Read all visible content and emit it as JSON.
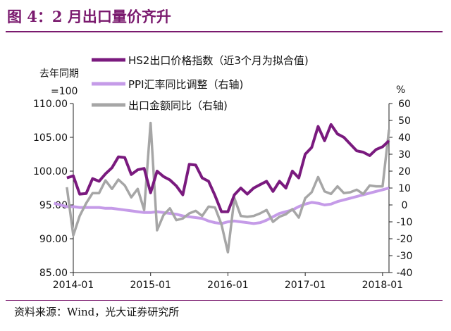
{
  "figure": {
    "title": "图 4：2 月出口量价齐升",
    "source": "资料来源：Wind，光大证券研究所"
  },
  "colors": {
    "hs2": "#7a1a7e",
    "ppi": "#c59be8",
    "export": "#a6a6a6",
    "title": "#7a1a6e"
  },
  "chart_data": {
    "type": "line",
    "left_axis_label": "去年同期",
    "left_axis_label2": "=100",
    "right_axis_unit": "%",
    "left_ylim": [
      85,
      110
    ],
    "left_ticks": [
      "85.00",
      "90.00",
      "95.00",
      "100.00",
      "105.00",
      "110.00"
    ],
    "right_ylim": [
      -40,
      60
    ],
    "right_ticks": [
      "-40",
      "-30",
      "-20",
      "-10",
      "0",
      "10",
      "20",
      "30",
      "40",
      "50",
      "60"
    ],
    "x_tick_labels": [
      "2014-01",
      "2015-01",
      "2016-01",
      "2017-01",
      "2018-01"
    ],
    "x_start": "2014-01",
    "x_end": "2018-02",
    "legend_position": "top",
    "series": [
      {
        "name": "HS2出口价格指数（近3个月为拟合值)",
        "axis": "left",
        "values": [
          99.0,
          99.3,
          96.6,
          96.7,
          98.9,
          98.5,
          99.6,
          100.5,
          102.1,
          102.0,
          99.5,
          100.2,
          100.4,
          96.8,
          100.0,
          99.2,
          98.7,
          97.8,
          96.5,
          101.0,
          100.9,
          99.0,
          98.5,
          96.4,
          94.0,
          94.0,
          96.5,
          97.5,
          96.6,
          97.5,
          98.0,
          98.5,
          97.0,
          98.5,
          97.5,
          100.0,
          99.0,
          102.5,
          103.5,
          106.6,
          104.5,
          106.9,
          105.5,
          105.0,
          104.0,
          103.0,
          102.8,
          102.3,
          103.2,
          103.6,
          104.5
        ]
      },
      {
        "name": "PPI汇率同比调整（右轴)",
        "axis": "right",
        "values": [
          1.0,
          0.0,
          -1.0,
          -1.0,
          -1.5,
          -1.5,
          -1.5,
          -1.5,
          -2.0,
          -2.0,
          -2.5,
          -3.0,
          -3.5,
          -4.0,
          -4.5,
          -4.5,
          -4.0,
          -4.5,
          -5.0,
          -5.5,
          -6.5,
          -7.0,
          -7.5,
          -8.0,
          -9.5,
          -10.5,
          -11.0,
          -10.0,
          -9.5,
          -10.0,
          -10.5,
          -11.0,
          -10.5,
          -9.0,
          -7.0,
          -5.0,
          -4.0,
          -3.0,
          -1.0,
          0.5,
          1.5,
          1.0,
          0.0,
          0.5,
          2.0,
          3.0,
          4.0,
          5.0,
          6.0,
          7.0,
          8.0,
          9.0,
          10.0
        ]
      },
      {
        "name": "出口金额同比（右轴)",
        "axis": "right",
        "values": [
          10.5,
          -18.0,
          -6.5,
          1.0,
          7.0,
          7.0,
          14.5,
          9.5,
          15.0,
          11.5,
          4.5,
          9.5,
          -3.0,
          48.5,
          -15.0,
          -6.0,
          -2.0,
          -9.0,
          -8.0,
          -5.0,
          -3.5,
          -6.5,
          -1.0,
          -1.5,
          -11.5,
          -28.0,
          4.0,
          -6.5,
          -7.0,
          -6.5,
          -5.0,
          -3.0,
          -10.0,
          -7.0,
          -5.5,
          -2.5,
          -7.5,
          4.0,
          7.5,
          16.5,
          8.0,
          6.5,
          11.0,
          7.0,
          7.5,
          9.0,
          6.5,
          11.5,
          11.0,
          11.0,
          44.5
        ]
      }
    ]
  }
}
